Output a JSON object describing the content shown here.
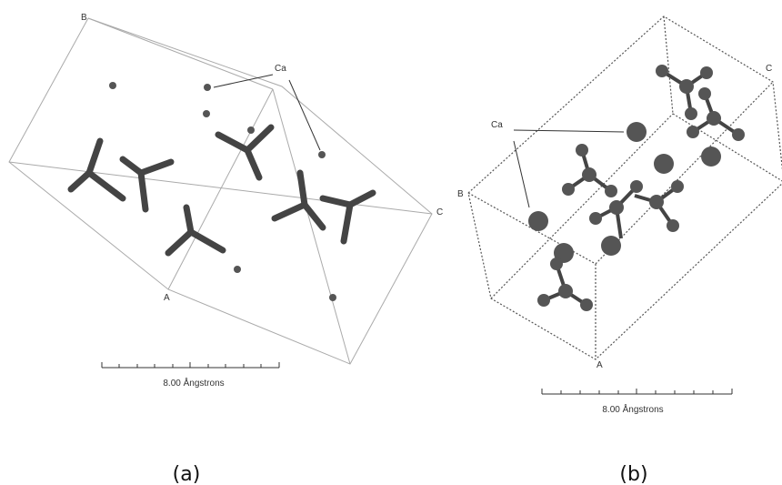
{
  "panels": [
    {
      "axis_labels": {
        "b": "B",
        "c": "C",
        "a": "A"
      },
      "atom_label": "Ca",
      "scale_bar": "8.00 Ångstrons",
      "caption": "(a)"
    },
    {
      "axis_labels": {
        "b": "B",
        "c": "C",
        "a": "A"
      },
      "atom_label": "Ca",
      "scale_bar": "8.00 Ångstrons",
      "caption": "(b)"
    }
  ]
}
